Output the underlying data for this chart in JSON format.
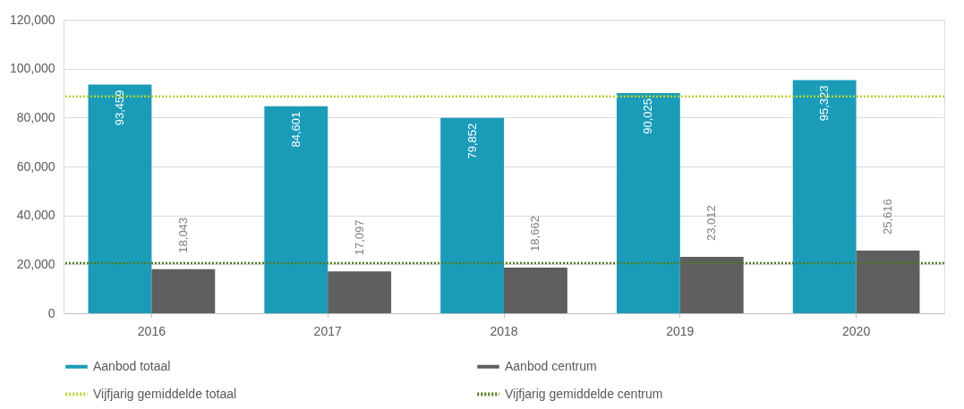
{
  "chart_data": {
    "type": "bar",
    "categories": [
      "2016",
      "2017",
      "2018",
      "2019",
      "2020"
    ],
    "series": [
      {
        "name": "Aanbod totaal",
        "color": "#1a9cb9",
        "values": [
          93459,
          84601,
          79852,
          90025,
          95323
        ],
        "value_labels": [
          "93,459",
          "84,601",
          "79,852",
          "90,025",
          "95,323"
        ]
      },
      {
        "name": "Aanbod centrum",
        "color": "#5f5f5f",
        "values": [
          18043,
          17097,
          18662,
          23012,
          25616
        ],
        "value_labels": [
          "18,043",
          "17,097",
          "18,662",
          "23,012",
          "25,616"
        ]
      }
    ],
    "ref_lines": [
      {
        "axis": "y",
        "value": 88652,
        "label": "Vijfjarig gemiddelde totaal",
        "color": "#b6d334",
        "line_style": "dotted"
      },
      {
        "axis": "y",
        "value": 20486,
        "label": "Vijfjarig gemiddelde centrum",
        "color": "#4d7a1f",
        "line_style": "dotted"
      }
    ],
    "ylim": [
      0,
      120000
    ],
    "yticks": [
      0,
      {
        "value": 20000,
        "label": "20,000"
      },
      {
        "value": 40000,
        "label": "40,000"
      },
      {
        "value": 60000,
        "label": "60,000"
      },
      {
        "value": 80000,
        "label": "80,000"
      },
      {
        "value": 100000,
        "label": "100,000"
      },
      {
        "value": 120000,
        "label": "120,000"
      }
    ],
    "grid": "y",
    "legend": "bottom"
  }
}
